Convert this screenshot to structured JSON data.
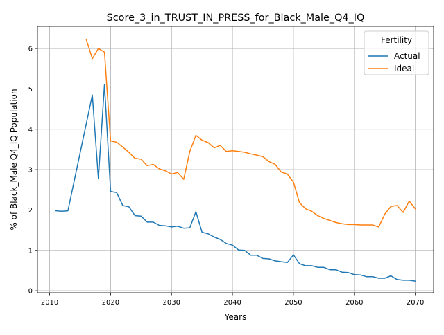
{
  "chart_data": {
    "type": "line",
    "title": "Score_3_in_TRUST_IN_PRESS_for_Black_Male_Q4_IQ",
    "xlabel": "Years",
    "ylabel": "% of Black_Male Q4_IQ Population",
    "xlim": [
      2008,
      2073
    ],
    "ylim": [
      -0.05,
      6.55
    ],
    "xticks": [
      2010,
      2020,
      2030,
      2040,
      2050,
      2060,
      2070
    ],
    "yticks": [
      0,
      1,
      2,
      3,
      4,
      5,
      6
    ],
    "grid": true,
    "legend": {
      "title": "Fertility",
      "placement": "top-right"
    },
    "series": [
      {
        "name": "Actual",
        "color": "#1f77b4",
        "x": [
          2011,
          2012,
          2013,
          2017,
          2018,
          2019,
          2020,
          2021,
          2022,
          2023,
          2024,
          2025,
          2026,
          2027,
          2028,
          2029,
          2030,
          2031,
          2032,
          2033,
          2034,
          2035,
          2036,
          2037,
          2038,
          2039,
          2040,
          2041,
          2042,
          2043,
          2044,
          2045,
          2046,
          2047,
          2048,
          2049,
          2050,
          2051,
          2052,
          2053,
          2054,
          2055,
          2056,
          2057,
          2058,
          2059,
          2060,
          2061,
          2062,
          2063,
          2064,
          2065,
          2066,
          2067,
          2068,
          2069,
          2070
        ],
        "values": [
          1.98,
          1.97,
          1.98,
          4.85,
          2.78,
          5.11,
          2.46,
          2.43,
          2.11,
          2.08,
          1.86,
          1.85,
          1.7,
          1.7,
          1.62,
          1.61,
          1.58,
          1.6,
          1.55,
          1.56,
          1.96,
          1.45,
          1.41,
          1.33,
          1.27,
          1.17,
          1.13,
          1.01,
          1.0,
          0.88,
          0.88,
          0.8,
          0.79,
          0.74,
          0.72,
          0.7,
          0.89,
          0.67,
          0.62,
          0.62,
          0.58,
          0.58,
          0.52,
          0.52,
          0.46,
          0.45,
          0.4,
          0.39,
          0.35,
          0.35,
          0.31,
          0.31,
          0.37,
          0.28,
          0.26,
          0.26,
          0.24
        ]
      },
      {
        "name": "Ideal",
        "color": "#ff7f0e",
        "x": [
          2016,
          2017,
          2018,
          2019,
          2020,
          2021,
          2022,
          2023,
          2024,
          2025,
          2026,
          2027,
          2028,
          2029,
          2030,
          2031,
          2032,
          2033,
          2034,
          2035,
          2036,
          2037,
          2038,
          2039,
          2040,
          2041,
          2042,
          2043,
          2044,
          2045,
          2046,
          2047,
          2048,
          2049,
          2050,
          2051,
          2052,
          2053,
          2054,
          2055,
          2056,
          2057,
          2058,
          2059,
          2060,
          2061,
          2062,
          2063,
          2064,
          2065,
          2066,
          2067,
          2068,
          2069,
          2070
        ],
        "values": [
          6.23,
          5.75,
          6.0,
          5.91,
          3.71,
          3.68,
          3.56,
          3.43,
          3.28,
          3.26,
          3.1,
          3.13,
          3.02,
          2.97,
          2.89,
          2.93,
          2.76,
          3.45,
          3.85,
          3.73,
          3.67,
          3.54,
          3.6,
          3.45,
          3.47,
          3.45,
          3.43,
          3.39,
          3.36,
          3.32,
          3.2,
          3.13,
          2.94,
          2.89,
          2.69,
          2.18,
          2.03,
          1.97,
          1.86,
          1.79,
          1.74,
          1.69,
          1.66,
          1.64,
          1.64,
          1.63,
          1.63,
          1.63,
          1.58,
          1.9,
          2.09,
          2.11,
          1.94,
          2.22,
          2.03
        ]
      }
    ]
  }
}
